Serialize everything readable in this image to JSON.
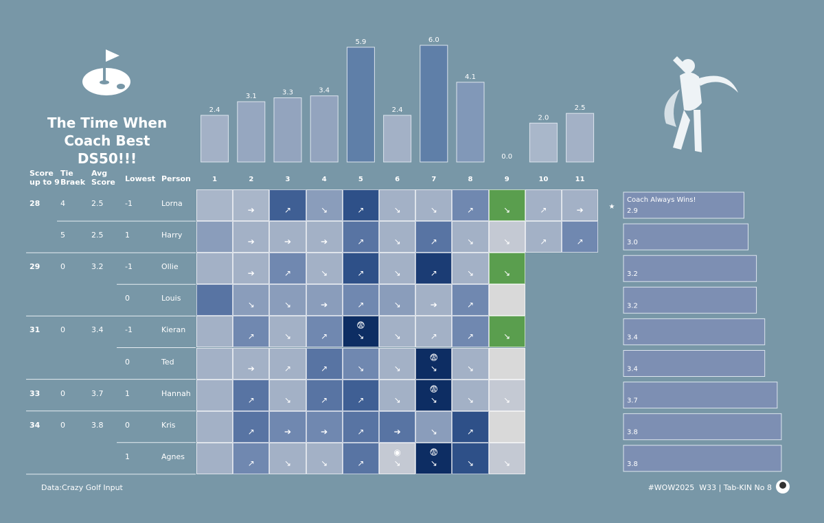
{
  "title": "The Time When Coach Best DS50!!!",
  "chart_data": [
    {
      "type": "bar",
      "categories": [
        "1",
        "2",
        "3",
        "4",
        "5",
        "6",
        "7",
        "8",
        "9",
        "10",
        "11"
      ],
      "values": [
        2.4,
        3.1,
        3.3,
        3.4,
        5.9,
        2.4,
        6.0,
        4.1,
        0.0,
        2.0,
        2.5
      ],
      "value_labels": [
        "2.4",
        "3.1",
        "3.3",
        "3.4",
        "5.9",
        "2.4",
        "6.0",
        "4.1",
        "0.0",
        "2.0",
        "2.5"
      ],
      "ylim": [
        0,
        6
      ],
      "colors": [
        "#a3b1c6",
        "#96a7c0",
        "#93a4be",
        "#93a4be",
        "#5f7fa8",
        "#a3b1c6",
        "#5f7fa8",
        "#8198b8",
        "#a3b1c6",
        "#a9b7ca",
        "#a3b1c6"
      ]
    },
    {
      "type": "hbar",
      "values": [
        2.9,
        3.0,
        3.2,
        3.2,
        3.4,
        3.4,
        3.7,
        3.8,
        3.8
      ],
      "value_labels": [
        "2.9",
        "3.0",
        "3.2",
        "3.2",
        "3.4",
        "3.4",
        "3.7",
        "3.8",
        "3.8"
      ],
      "xlim": [
        0,
        4
      ],
      "color": "#7d8fb3",
      "annotation": "Coach Always Wins!",
      "marker": "★"
    }
  ],
  "table": {
    "headers": [
      "Score\nup to 9",
      "Tie\nBraek",
      "Avg\nScore",
      "Lowest",
      "Person"
    ],
    "rows": [
      [
        28,
        4,
        2.5,
        -1,
        "Lorna"
      ],
      [
        null,
        5,
        2.5,
        1,
        "Harry"
      ],
      [
        29,
        0,
        3.2,
        -1,
        "Ollie"
      ],
      [
        null,
        null,
        null,
        0,
        "Louis"
      ],
      [
        31,
        0,
        3.4,
        -1,
        "Kieran"
      ],
      [
        null,
        null,
        null,
        0,
        "Ted"
      ],
      [
        33,
        0,
        3.7,
        1,
        "Hannah"
      ],
      [
        34,
        0,
        3.8,
        0,
        "Kris"
      ],
      [
        null,
        null,
        null,
        1,
        "Agnes"
      ]
    ],
    "cells": [
      [
        null,
        "➔",
        "↗",
        "↘",
        "↗",
        "↘",
        "↘",
        "↗",
        "↘",
        "↗",
        "➔"
      ],
      [
        null,
        "➔",
        "➔",
        "➔",
        "↗",
        "↘",
        "↗",
        "↘",
        "↘",
        "↗",
        "↗"
      ],
      [
        null,
        "➔",
        "↗",
        "↘",
        "↗",
        "↘",
        "↗",
        "↘",
        "↘"
      ],
      [
        null,
        "↘",
        "↘",
        "➔",
        "↗",
        "↘",
        "➔",
        "↗",
        null
      ],
      [
        null,
        "↗",
        "↘",
        "↗",
        "😨\n↘",
        "↘",
        "↗",
        "↗",
        "↘"
      ],
      [
        null,
        "➔",
        "↗",
        "↗",
        "↘",
        "↘",
        "😨\n↘",
        "↘",
        null
      ],
      [
        null,
        "↗",
        "↘",
        "↗",
        "↗",
        "↘",
        "😨\n↘",
        "↘",
        "↘"
      ],
      [
        null,
        "↗",
        "➔",
        "➔",
        "↗",
        "➔",
        "↘",
        "↗",
        null
      ],
      [
        null,
        "↗",
        "↘",
        "↘",
        "↗",
        "◉\n↘",
        "😨\n↘",
        "↘",
        "↘"
      ]
    ],
    "cell_colors": [
      [
        "#a9b6c9",
        "#a9b6c9",
        "#3f5f94",
        "#8a9dbb",
        "#2e5088",
        "#a3b1c6",
        "#a3b1c6",
        "#7088b0",
        "#5a9e4e",
        "#a3b1c6",
        "#a3b1c6"
      ],
      [
        "#8a9dbb",
        "#a3b1c6",
        "#a3b1c6",
        "#a3b1c6",
        "#5874a3",
        "#a3b1c6",
        "#5874a3",
        "#a3b1c6",
        "#c4c9d3",
        "#a3b1c6",
        "#7088b0"
      ],
      [
        "#a3b1c6",
        "#a3b1c6",
        "#7088b0",
        "#a3b1c6",
        "#2e5088",
        "#a3b1c6",
        "#1b3c74",
        "#a3b1c6",
        "#5a9e4e"
      ],
      [
        "#5874a3",
        "#8a9dbb",
        "#8a9dbb",
        "#8a9dbb",
        "#7088b0",
        "#8a9dbb",
        "#a3b1c6",
        "#7088b0",
        "#d9d9d9"
      ],
      [
        "#a3b1c6",
        "#7088b0",
        "#a3b1c6",
        "#7088b0",
        "#0d2d63",
        "#a3b1c6",
        "#a3b1c6",
        "#7088b0",
        "#5a9e4e"
      ],
      [
        "#a3b1c6",
        "#a3b1c6",
        "#a3b1c6",
        "#5874a3",
        "#7088b0",
        "#a3b1c6",
        "#0d2d63",
        "#a3b1c6",
        "#d9d9d9"
      ],
      [
        "#a3b1c6",
        "#5874a3",
        "#a3b1c6",
        "#5874a3",
        "#3f5f94",
        "#a3b1c6",
        "#0d2d63",
        "#a3b1c6",
        "#c4c9d3"
      ],
      [
        "#a3b1c6",
        "#5874a3",
        "#7088b0",
        "#7088b0",
        "#5874a3",
        "#5874a3",
        "#8a9dbb",
        "#2e5088",
        "#d9d9d9"
      ],
      [
        "#a3b1c6",
        "#7088b0",
        "#a3b1c6",
        "#a3b1c6",
        "#5874a3",
        "#c4c9d3",
        "#0d2d63",
        "#2e5088",
        "#c4c9d3"
      ]
    ]
  },
  "footer": {
    "source": "Data:Crazy Golf Input",
    "credit": "#WOW2025  W33 | Tab-KIN No 8"
  }
}
